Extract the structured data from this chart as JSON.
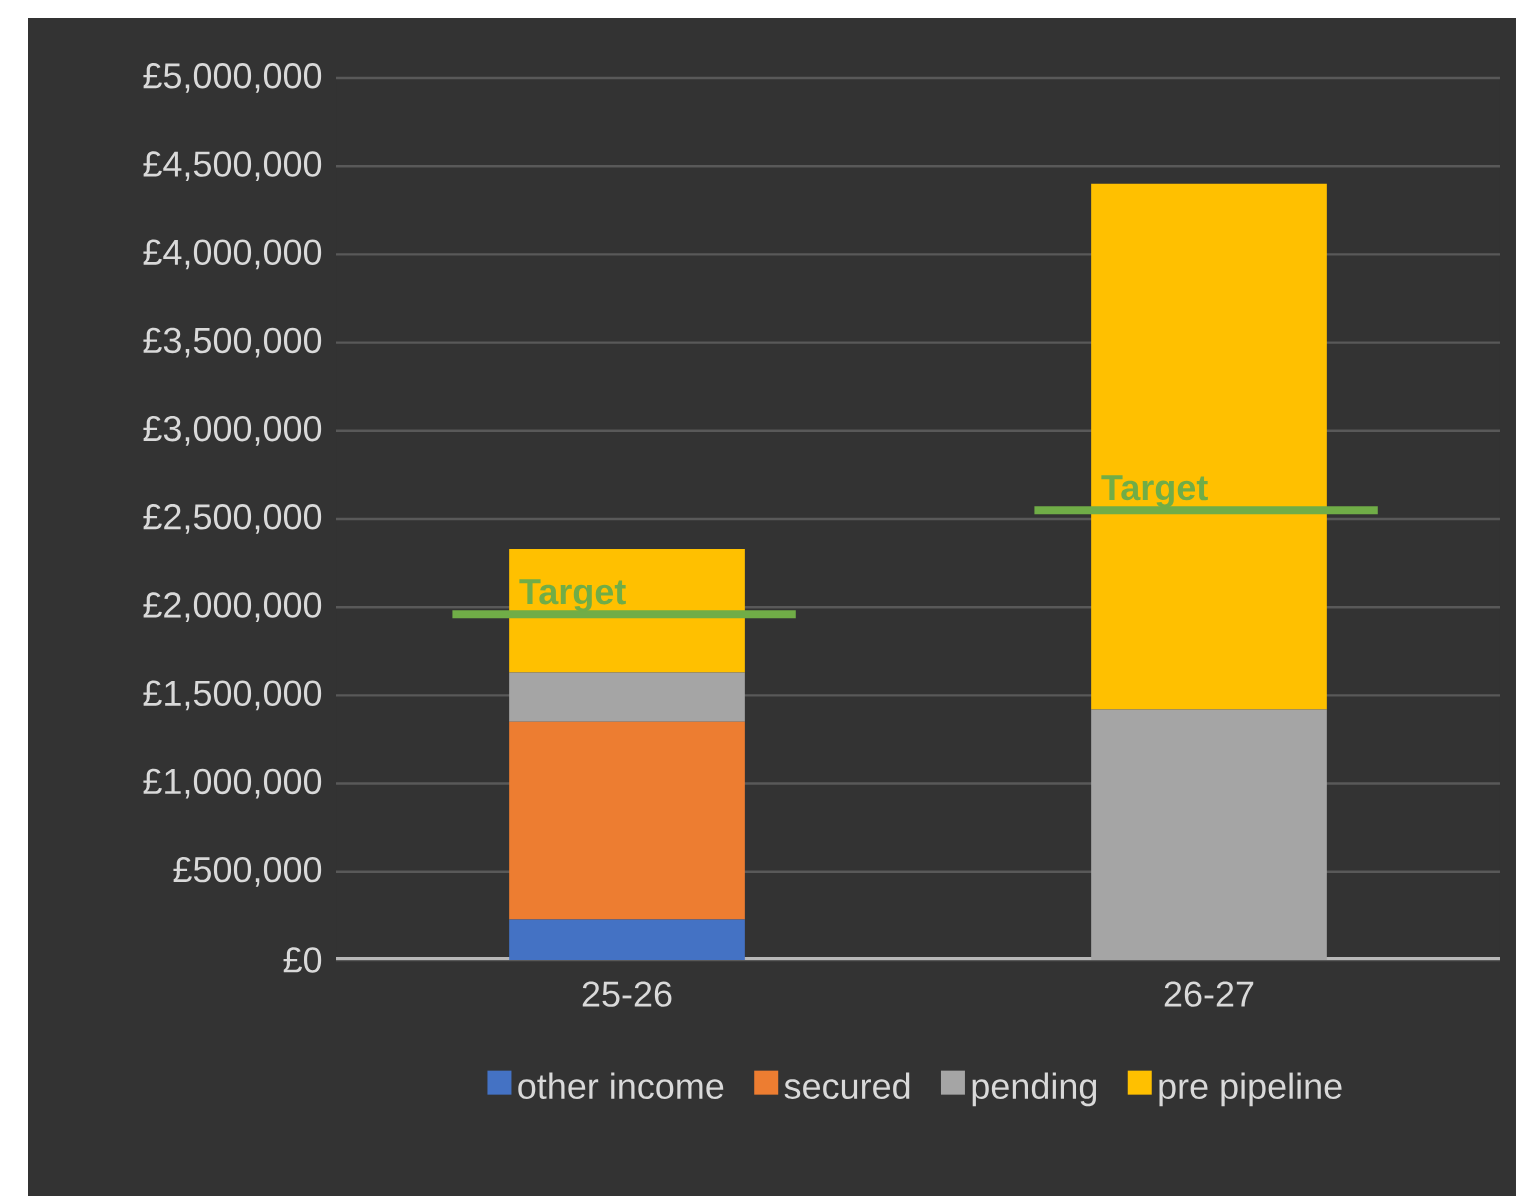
{
  "chart_data": {
    "type": "bar",
    "stacked": true,
    "categories": [
      "25-26",
      "26-27"
    ],
    "series": [
      {
        "name": "other income",
        "color": "#4472c4",
        "values": [
          230000,
          0
        ]
      },
      {
        "name": "secured",
        "color": "#ed7d31",
        "values": [
          1120000,
          0
        ]
      },
      {
        "name": "pending",
        "color": "#a5a5a5",
        "values": [
          280000,
          1420000
        ]
      },
      {
        "name": "pre pipeline",
        "color": "#ffc000",
        "values": [
          700000,
          2980000
        ]
      }
    ],
    "ref_lines": [
      {
        "axis": "y",
        "value": 1960000,
        "label": "Target",
        "color": "#70ad47"
      },
      {
        "axis": "y",
        "value": 2550000,
        "label": "Target",
        "color": "#70ad47"
      }
    ],
    "ylim": [
      0,
      5000000
    ],
    "yticks": [
      {
        "value": 0,
        "label": "£0"
      },
      {
        "value": 500000,
        "label": "£500,000"
      },
      {
        "value": 1000000,
        "label": "£1,000,000"
      },
      {
        "value": 1500000,
        "label": "£1,500,000"
      },
      {
        "value": 2000000,
        "label": "£2,000,000"
      },
      {
        "value": 2500000,
        "label": "£2,500,000"
      },
      {
        "value": 3000000,
        "label": "£3,000,000"
      },
      {
        "value": 3500000,
        "label": "£3,500,000"
      },
      {
        "value": 4000000,
        "label": "£4,000,000"
      },
      {
        "value": 4500000,
        "label": "£4,500,000"
      },
      {
        "value": 5000000,
        "label": "£5,000,000"
      }
    ],
    "grid": "y",
    "legend": "bottom"
  }
}
